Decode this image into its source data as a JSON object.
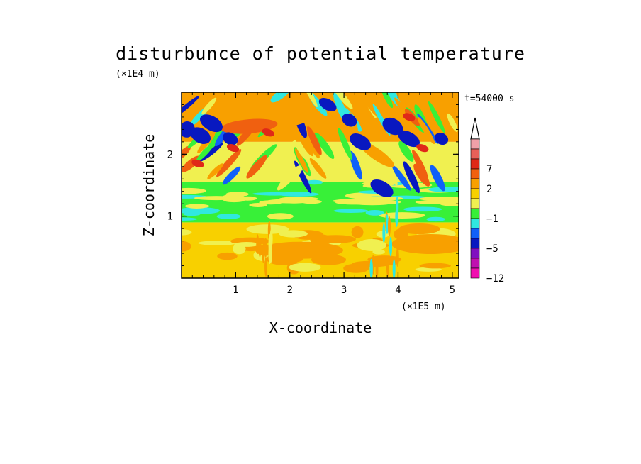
{
  "chart_data": {
    "type": "heatmap",
    "title": "disturbunce of potential temperature",
    "xlabel": "X-coordinate",
    "ylabel": "Z-coordinate",
    "x_unit": "(×1E5 m)",
    "y_unit": "(×1E4 m)",
    "time_label": "t=54000 s",
    "xlim": [
      0,
      5.12
    ],
    "ylim": [
      0,
      3.0
    ],
    "x_ticks": [
      1,
      2,
      3,
      4,
      5
    ],
    "y_ticks": [
      1,
      2
    ],
    "colorbar": {
      "labels": [
        "7",
        "2",
        "−1",
        "−5",
        "−12"
      ],
      "label_values": [
        7,
        2,
        -1,
        -5,
        -12
      ],
      "bins": [
        {
          "color": "#f0a0a8",
          "range": [
            9,
            12
          ]
        },
        {
          "color": "#e86058",
          "range": [
            8,
            9
          ]
        },
        {
          "color": "#e02818",
          "range": [
            7,
            8
          ]
        },
        {
          "color": "#f06010",
          "range": [
            5,
            7
          ]
        },
        {
          "color": "#f8a000",
          "range": [
            2,
            5
          ]
        },
        {
          "color": "#f8d000",
          "range": [
            1,
            2
          ]
        },
        {
          "color": "#f0f050",
          "range": [
            0,
            1
          ]
        },
        {
          "color": "#38f038",
          "range": [
            -1,
            0
          ]
        },
        {
          "color": "#30e8e0",
          "range": [
            -2,
            -1
          ]
        },
        {
          "color": "#1060f8",
          "range": [
            -3,
            -2
          ]
        },
        {
          "color": "#0818c0",
          "range": [
            -5,
            -3
          ]
        },
        {
          "color": "#8010c0",
          "range": [
            -8,
            -5
          ]
        },
        {
          "color": "#c010b0",
          "range": [
            -10,
            -8
          ]
        },
        {
          "color": "#f010b0",
          "range": [
            -12,
            -10
          ]
        }
      ],
      "extend": "max"
    },
    "field_bands": [
      {
        "z": [
          0,
          0.9
        ],
        "dominant_value": 1.5
      },
      {
        "z": [
          0.9,
          1.2
        ],
        "dominant_value": -0.5
      },
      {
        "z": [
          1.2,
          1.55
        ],
        "dominant_value": -0.5
      },
      {
        "z": [
          1.55,
          2.2
        ],
        "dominant_value": 0.5
      },
      {
        "z": [
          2.2,
          3.0
        ],
        "dominant_value": 3
      }
    ]
  }
}
